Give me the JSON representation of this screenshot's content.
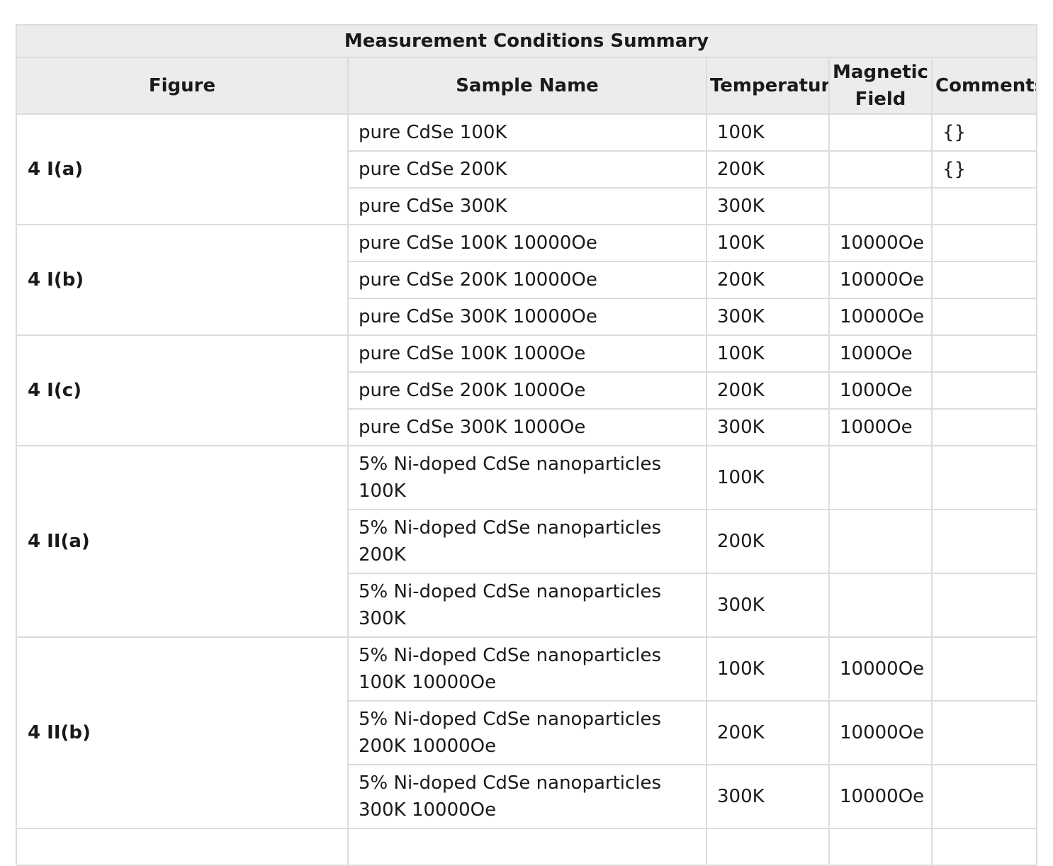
{
  "table": {
    "caption": "Measurement Conditions Summary",
    "headers": {
      "figure": "Figure",
      "sample": "Sample Name",
      "temperature": "Temperature",
      "field": "Magnetic Field",
      "comments": "Comments"
    },
    "groups": [
      {
        "figure": "4 I(a)",
        "rows": [
          {
            "sample": "pure CdSe 100K",
            "temperature": "100K",
            "field": "",
            "comments": "{}"
          },
          {
            "sample": "pure CdSe 200K",
            "temperature": "200K",
            "field": "",
            "comments": "{}"
          },
          {
            "sample": "pure CdSe 300K",
            "temperature": "300K",
            "field": "",
            "comments": ""
          }
        ]
      },
      {
        "figure": "4 I(b)",
        "rows": [
          {
            "sample": "pure CdSe 100K 10000Oe",
            "temperature": "100K",
            "field": "10000Oe",
            "comments": ""
          },
          {
            "sample": "pure CdSe 200K 10000Oe",
            "temperature": "200K",
            "field": "10000Oe",
            "comments": ""
          },
          {
            "sample": "pure CdSe 300K 10000Oe",
            "temperature": "300K",
            "field": "10000Oe",
            "comments": ""
          }
        ]
      },
      {
        "figure": "4 I(c)",
        "rows": [
          {
            "sample": "pure CdSe 100K 1000Oe",
            "temperature": "100K",
            "field": "1000Oe",
            "comments": ""
          },
          {
            "sample": "pure CdSe 200K 1000Oe",
            "temperature": "200K",
            "field": "1000Oe",
            "comments": ""
          },
          {
            "sample": "pure CdSe 300K 1000Oe",
            "temperature": "300K",
            "field": "1000Oe",
            "comments": ""
          }
        ]
      },
      {
        "figure": "4 II(a)",
        "rows": [
          {
            "sample": "5% Ni-doped CdSe nanoparticles 100K",
            "temperature": "100K",
            "field": "",
            "comments": ""
          },
          {
            "sample": "5% Ni-doped CdSe nanoparticles 200K",
            "temperature": "200K",
            "field": "",
            "comments": ""
          },
          {
            "sample": "5% Ni-doped CdSe nanoparticles 300K",
            "temperature": "300K",
            "field": "",
            "comments": ""
          }
        ]
      },
      {
        "figure": "4 II(b)",
        "rows": [
          {
            "sample": "5% Ni-doped CdSe nanoparticles 100K 10000Oe",
            "temperature": "100K",
            "field": "10000Oe",
            "comments": ""
          },
          {
            "sample": "5% Ni-doped CdSe nanoparticles 200K 10000Oe",
            "temperature": "200K",
            "field": "10000Oe",
            "comments": ""
          },
          {
            "sample": "5% Ni-doped CdSe nanoparticles 300K 10000Oe",
            "temperature": "300K",
            "field": "10000Oe",
            "comments": ""
          }
        ]
      }
    ]
  }
}
